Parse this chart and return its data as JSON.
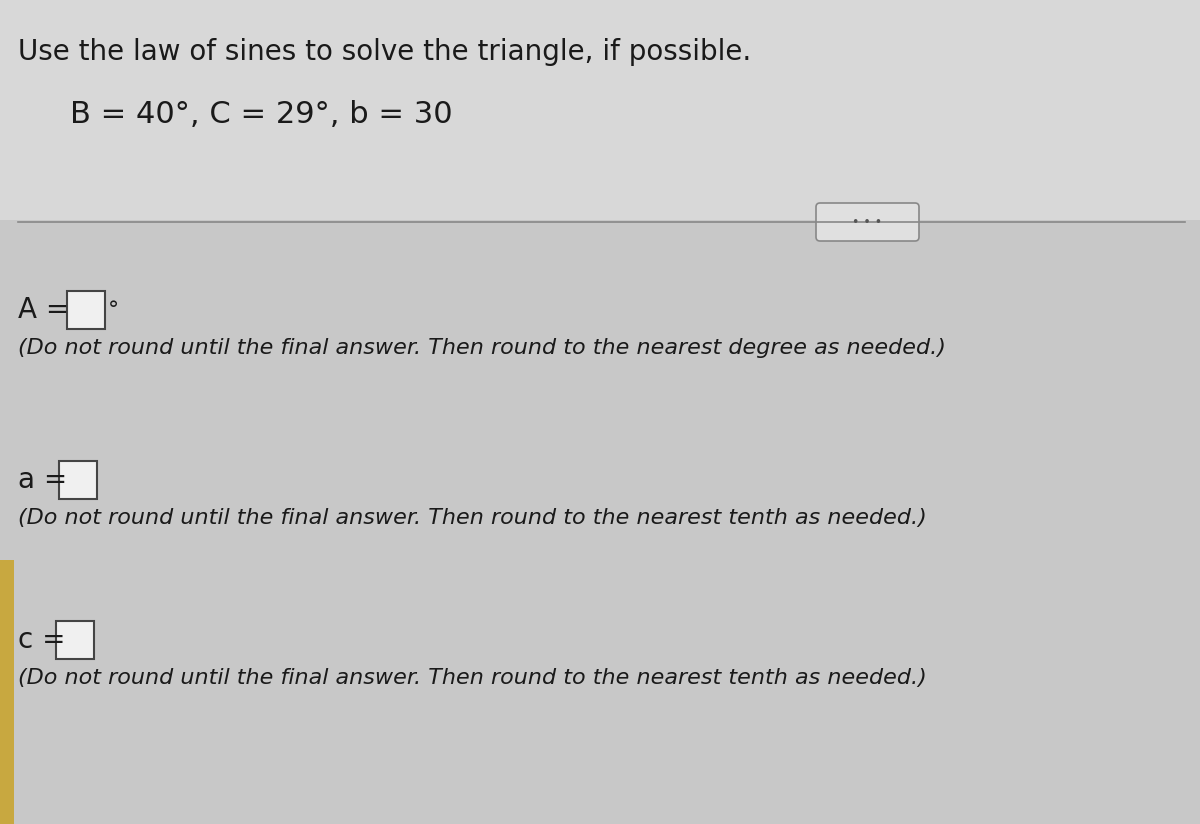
{
  "background_color": "#c8c8c8",
  "title_text": "Use the law of sines to solve the triangle, if possible.",
  "given_text": "B = 40°, C = 29°, b = 30",
  "section1_label": "A =",
  "section1_degree": "°",
  "section1_note": "(Do not round until the final answer. Then round to the nearest degree as needed.)",
  "section2_label": "a =",
  "section2_note": "(Do not round until the final answer. Then round to the nearest tenth as needed.)",
  "section3_label": "c =",
  "section3_note": "(Do not round until the final answer. Then round to the nearest tenth as needed.)",
  "title_fontsize": 20,
  "given_fontsize": 22,
  "label_fontsize": 20,
  "note_fontsize": 16,
  "text_color": "#1a1a1a",
  "box_color": "#f0f0f0",
  "box_edge_color": "#444444",
  "left_bar_color": "#c8a840",
  "dots_color": "#555555",
  "line_color": "#888888",
  "dots_bg": "#e0e0e0",
  "dots_border": "#888888"
}
